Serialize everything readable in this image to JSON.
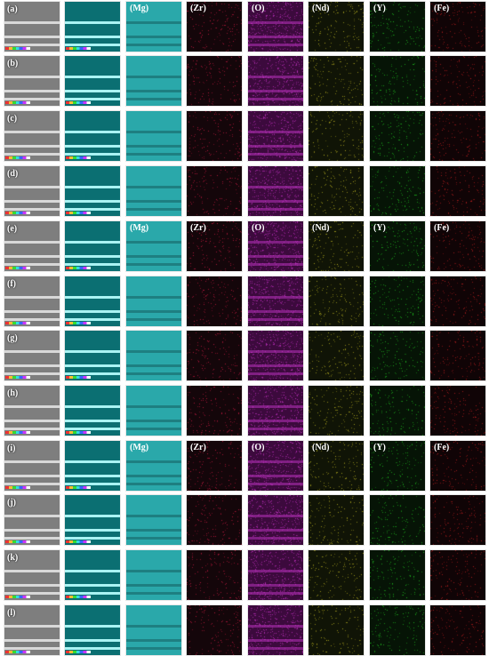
{
  "rows": [
    {
      "label": "(a)",
      "element_labels": [
        "(Mg)",
        "(Zr)",
        "(O)",
        "(Nd)",
        "(Y)",
        "(Fe)"
      ]
    },
    {
      "label": "(b)"
    },
    {
      "label": "(c)"
    },
    {
      "label": "(d)"
    },
    {
      "label": "(e)",
      "element_labels": [
        "(Mg)",
        "(Zr)",
        "(O)",
        "(Nd)",
        "(Y)",
        "(Fe)"
      ]
    },
    {
      "label": "(f)"
    },
    {
      "label": "(g)"
    },
    {
      "label": "(h)"
    },
    {
      "label": "(i)",
      "element_labels": [
        "(Mg)",
        "(Zr)",
        "(O)",
        "(Nd)",
        "(Y)",
        "(Fe)"
      ]
    },
    {
      "label": "(j)"
    },
    {
      "label": "(k)"
    },
    {
      "label": "(l)"
    }
  ],
  "colors": {
    "Mg": "#2aa8aa",
    "Zr": "#cc1a44",
    "O": "#c030c0",
    "Nd": "#b8b020",
    "Y": "#20c020",
    "Fe": "#c02020"
  }
}
